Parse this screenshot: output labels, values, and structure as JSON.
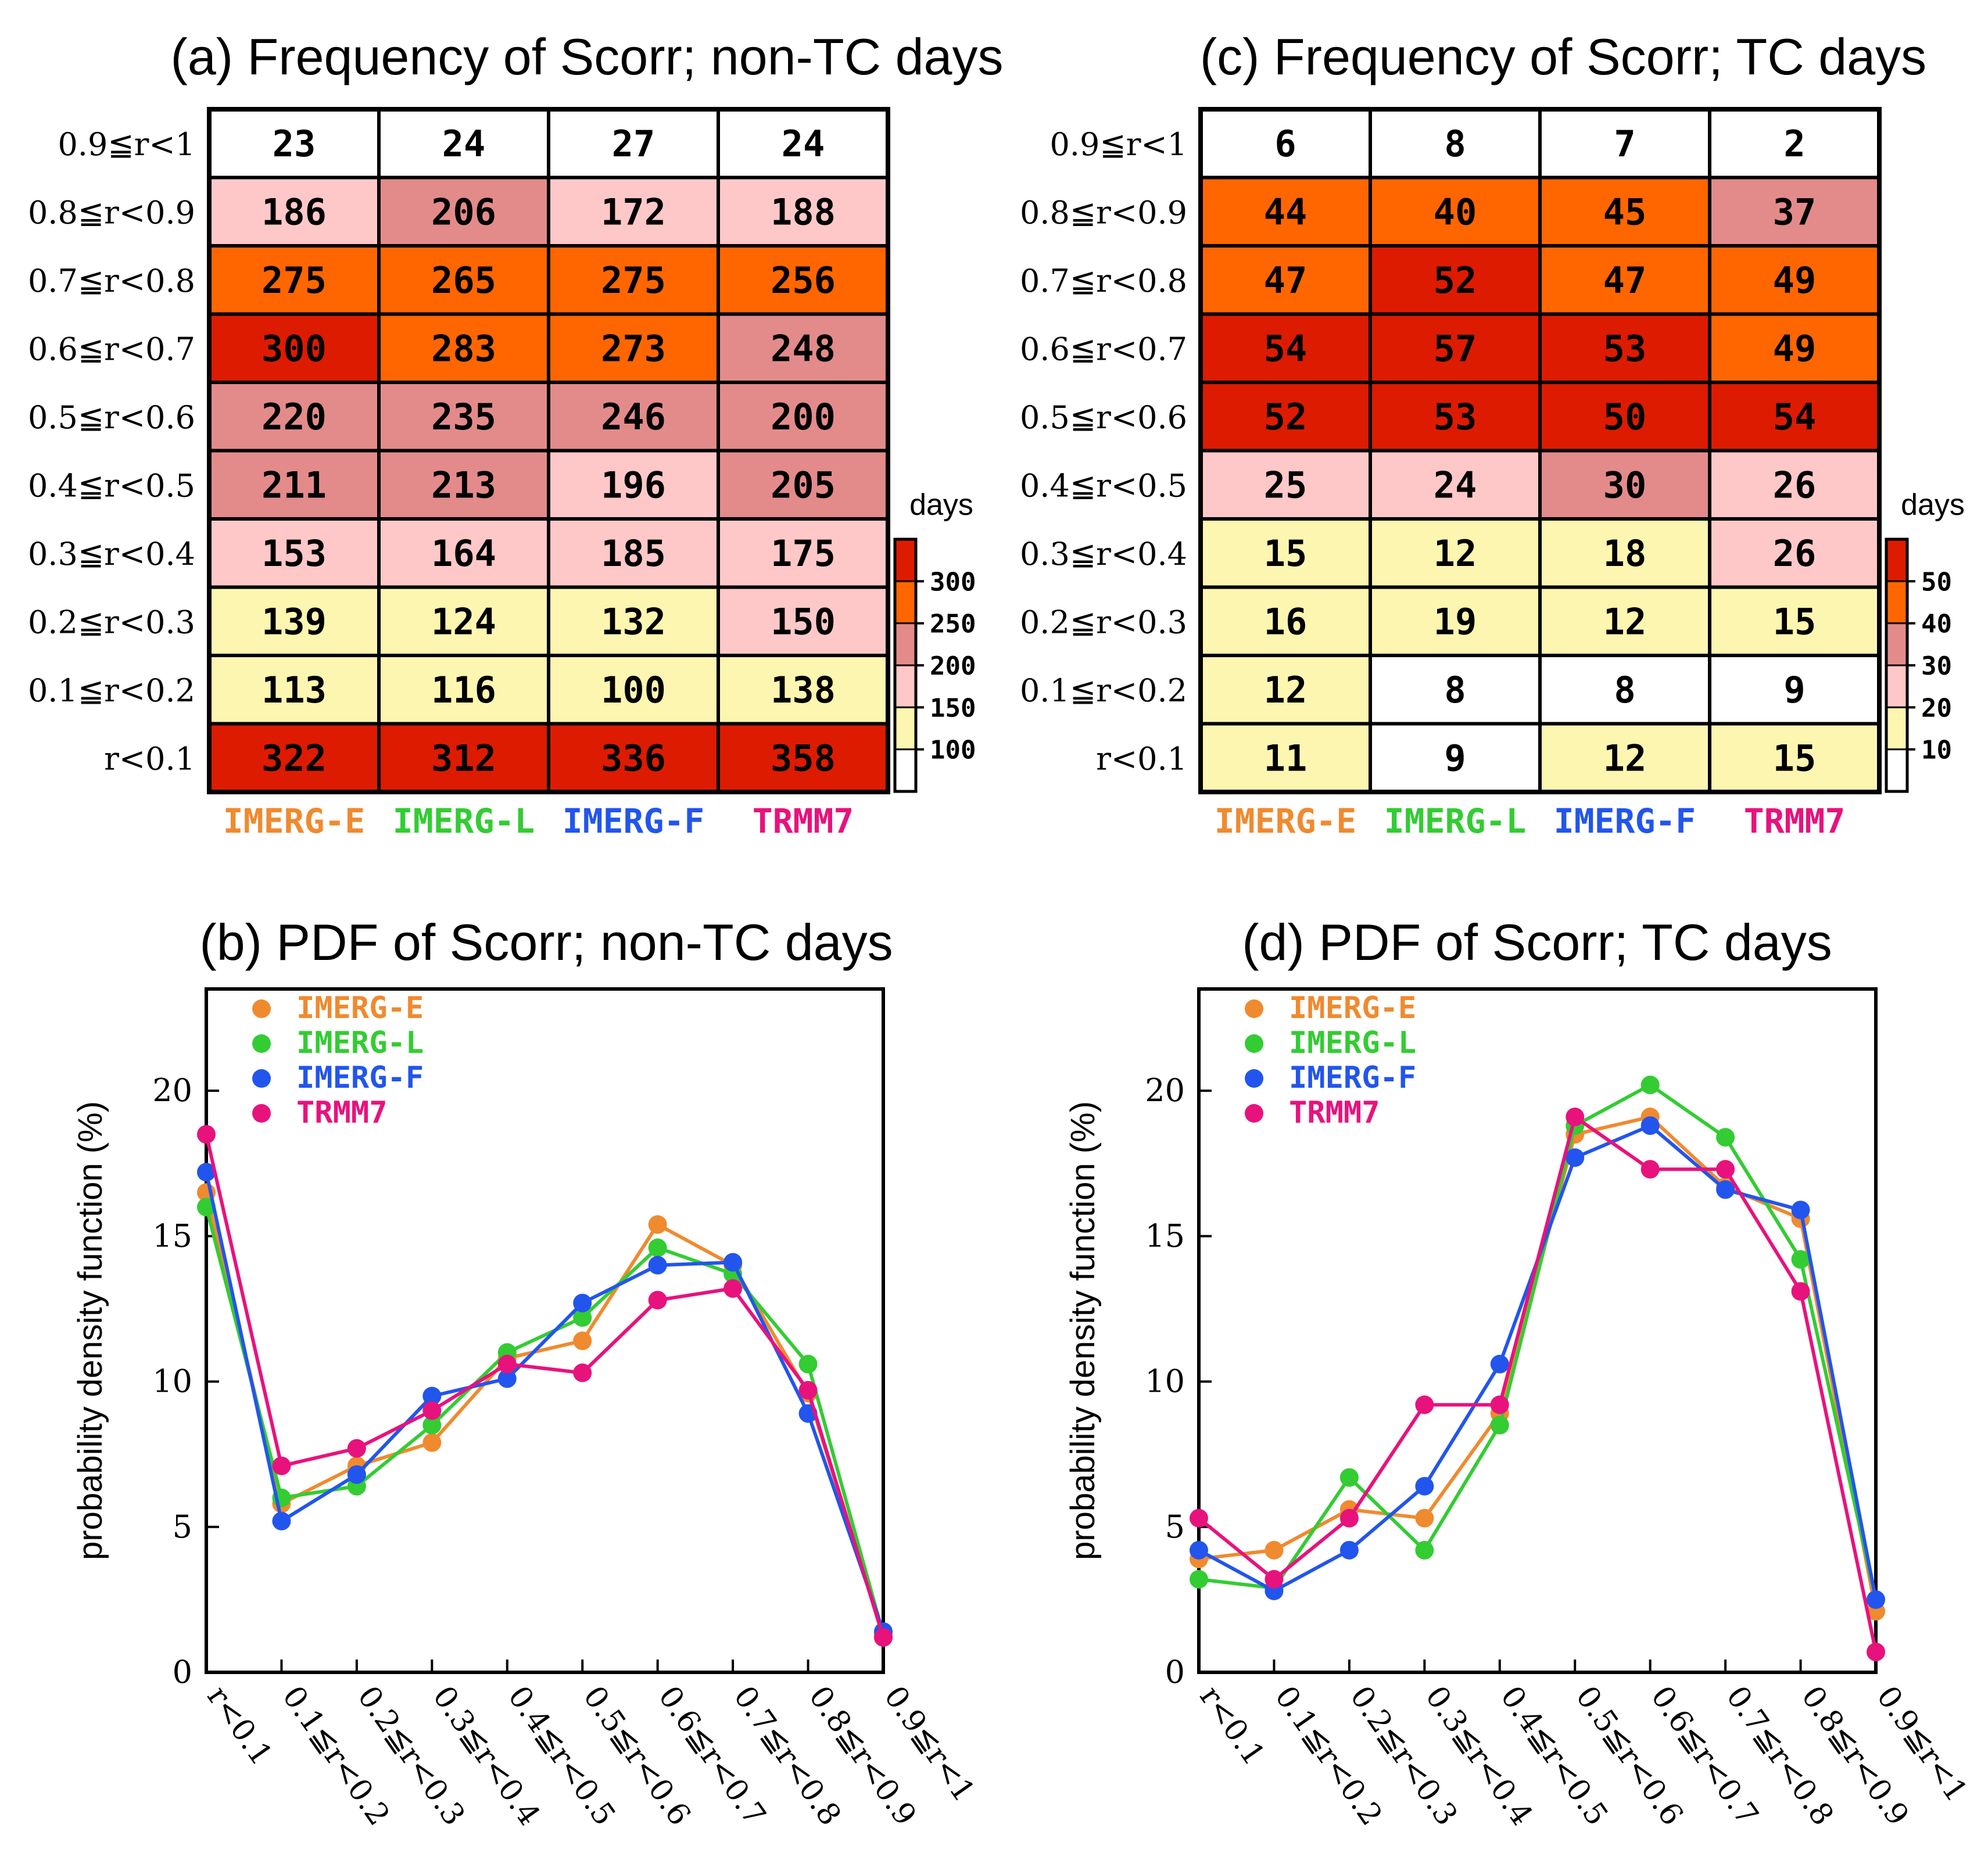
{
  "colors": {
    "IMERG-E": "#f08a2e",
    "IMERG-L": "#33cc33",
    "IMERG-F": "#2255ee",
    "TRMM7": "#e8127d",
    "bins": [
      "#ffffff",
      "#fdf6b0",
      "#ffc8c8",
      "#e38b8b",
      "#ff6600",
      "#dd1b00"
    ]
  },
  "chart_data": [
    {
      "id": "a",
      "type": "table",
      "title": "(a) Frequency of Scorr; non-TC days",
      "row_labels": [
        "0.9≦r<1",
        "0.8≦r<0.9",
        "0.7≦r<0.8",
        "0.6≦r<0.7",
        "0.5≦r<0.6",
        "0.4≦r<0.5",
        "0.3≦r<0.4",
        "0.2≦r<0.3",
        "0.1≦r<0.2",
        "r<0.1"
      ],
      "columns": [
        "IMERG-E",
        "IMERG-L",
        "IMERG-F",
        "TRMM7"
      ],
      "values": [
        [
          23,
          24,
          27,
          24
        ],
        [
          186,
          206,
          172,
          188
        ],
        [
          275,
          265,
          275,
          256
        ],
        [
          300,
          283,
          273,
          248
        ],
        [
          220,
          235,
          246,
          200
        ],
        [
          211,
          213,
          196,
          205
        ],
        [
          153,
          164,
          185,
          175
        ],
        [
          139,
          124,
          132,
          150
        ],
        [
          113,
          116,
          100,
          138
        ],
        [
          322,
          312,
          336,
          358
        ]
      ],
      "colorbar": {
        "unit": "days",
        "levels": [
          100,
          150,
          200,
          250,
          300
        ]
      }
    },
    {
      "id": "c",
      "type": "table",
      "title": "(c) Frequency of Scorr; TC days",
      "row_labels": [
        "0.9≦r<1",
        "0.8≦r<0.9",
        "0.7≦r<0.8",
        "0.6≦r<0.7",
        "0.5≦r<0.6",
        "0.4≦r<0.5",
        "0.3≦r<0.4",
        "0.2≦r<0.3",
        "0.1≦r<0.2",
        "r<0.1"
      ],
      "columns": [
        "IMERG-E",
        "IMERG-L",
        "IMERG-F",
        "TRMM7"
      ],
      "values": [
        [
          6,
          8,
          7,
          2
        ],
        [
          44,
          40,
          45,
          37
        ],
        [
          47,
          52,
          47,
          49
        ],
        [
          54,
          57,
          53,
          49
        ],
        [
          52,
          53,
          50,
          54
        ],
        [
          25,
          24,
          30,
          26
        ],
        [
          15,
          12,
          18,
          26
        ],
        [
          16,
          19,
          12,
          15
        ],
        [
          12,
          8,
          8,
          9
        ],
        [
          11,
          9,
          12,
          15
        ]
      ],
      "colorbar": {
        "unit": "days",
        "levels": [
          10,
          20,
          30,
          40,
          50
        ]
      }
    },
    {
      "id": "b",
      "type": "line",
      "title": "(b) PDF of Scorr; non-TC days",
      "ylabel": "probability  density function (%)",
      "ylim": [
        0,
        23.5
      ],
      "yticks": [
        0,
        5,
        10,
        15,
        20
      ],
      "categories": [
        "r<0.1",
        "0.1≦r<0.2",
        "0.2≦r<0.3",
        "0.3≦r<0.4",
        "0.4≦r<0.5",
        "0.5≦r<0.6",
        "0.6≦r<0.7",
        "0.7≦r<0.8",
        "0.8≦r<0.9",
        "0.9≦r<1"
      ],
      "series": [
        {
          "name": "IMERG-E",
          "values": [
            16.5,
            5.8,
            7.1,
            7.9,
            10.8,
            11.4,
            15.4,
            14.0,
            9.6,
            1.2
          ]
        },
        {
          "name": "IMERG-L",
          "values": [
            16.0,
            6.0,
            6.4,
            8.5,
            11.0,
            12.2,
            14.6,
            13.7,
            10.6,
            1.3
          ]
        },
        {
          "name": "IMERG-F",
          "values": [
            17.2,
            5.2,
            6.8,
            9.5,
            10.1,
            12.7,
            14.0,
            14.1,
            8.9,
            1.4
          ]
        },
        {
          "name": "TRMM7",
          "values": [
            18.5,
            7.1,
            7.7,
            9.0,
            10.6,
            10.3,
            12.8,
            13.2,
            9.7,
            1.2
          ]
        }
      ],
      "legend": [
        "IMERG-E",
        "IMERG-L",
        "IMERG-F",
        "TRMM7"
      ]
    },
    {
      "id": "d",
      "type": "line",
      "title": "(d) PDF of Scorr; TC days",
      "ylabel": "probability  density function (%)",
      "ylim": [
        0,
        23.5
      ],
      "yticks": [
        0,
        5,
        10,
        15,
        20
      ],
      "categories": [
        "r<0.1",
        "0.1≦r<0.2",
        "0.2≦r<0.3",
        "0.3≦r<0.4",
        "0.4≦r<0.5",
        "0.5≦r<0.6",
        "0.6≦r<0.7",
        "0.7≦r<0.8",
        "0.8≦r<0.9",
        "0.9≦r<1"
      ],
      "series": [
        {
          "name": "IMERG-E",
          "values": [
            3.9,
            4.2,
            5.6,
            5.3,
            8.9,
            18.5,
            19.1,
            16.7,
            15.6,
            2.1
          ]
        },
        {
          "name": "IMERG-L",
          "values": [
            3.2,
            2.9,
            6.7,
            4.2,
            8.5,
            18.8,
            20.2,
            18.4,
            14.2,
            2.5
          ]
        },
        {
          "name": "IMERG-F",
          "values": [
            4.2,
            2.8,
            4.2,
            6.4,
            10.6,
            17.7,
            18.8,
            16.6,
            15.9,
            2.5
          ]
        },
        {
          "name": "TRMM7",
          "values": [
            5.3,
            3.2,
            5.3,
            9.2,
            9.2,
            19.1,
            17.3,
            17.3,
            13.1,
            0.7
          ]
        }
      ],
      "legend": [
        "IMERG-E",
        "IMERG-L",
        "IMERG-F",
        "TRMM7"
      ]
    }
  ]
}
